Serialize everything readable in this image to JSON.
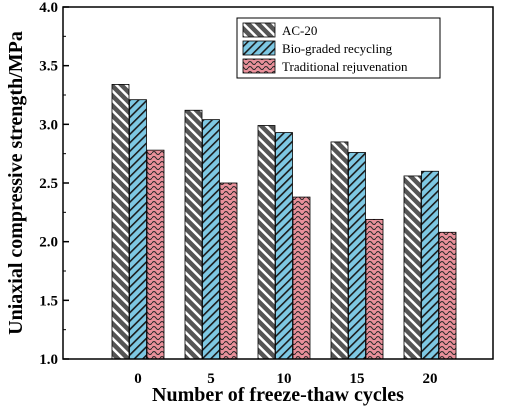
{
  "chart_data": {
    "type": "bar",
    "xlabel": "Number of freeze-thaw cycles",
    "ylabel": "Uniaxial compressive strength/MPa",
    "categories": [
      "0",
      "5",
      "10",
      "15",
      "20"
    ],
    "ylim": [
      1.0,
      4.0
    ],
    "yticks": [
      "1.0",
      "1.5",
      "2.0",
      "2.5",
      "3.0",
      "3.5",
      "4.0"
    ],
    "grid": false,
    "legend_position": "top-right",
    "series": [
      {
        "name": "AC-20",
        "color": "#555555",
        "pattern": "dark diagonal hatch",
        "values": [
          3.34,
          3.12,
          2.99,
          2.85,
          2.56
        ]
      },
      {
        "name": "Bio-graded recycling",
        "color": "#7ec8e3",
        "pattern": "light-blue diagonal hatch",
        "values": [
          3.21,
          3.04,
          2.93,
          2.76,
          2.6
        ]
      },
      {
        "name": "Traditional rejuvenation",
        "color": "#e8909a",
        "pattern": "pink wavy hatch",
        "values": [
          2.78,
          2.5,
          2.38,
          2.19,
          2.08
        ]
      }
    ]
  }
}
